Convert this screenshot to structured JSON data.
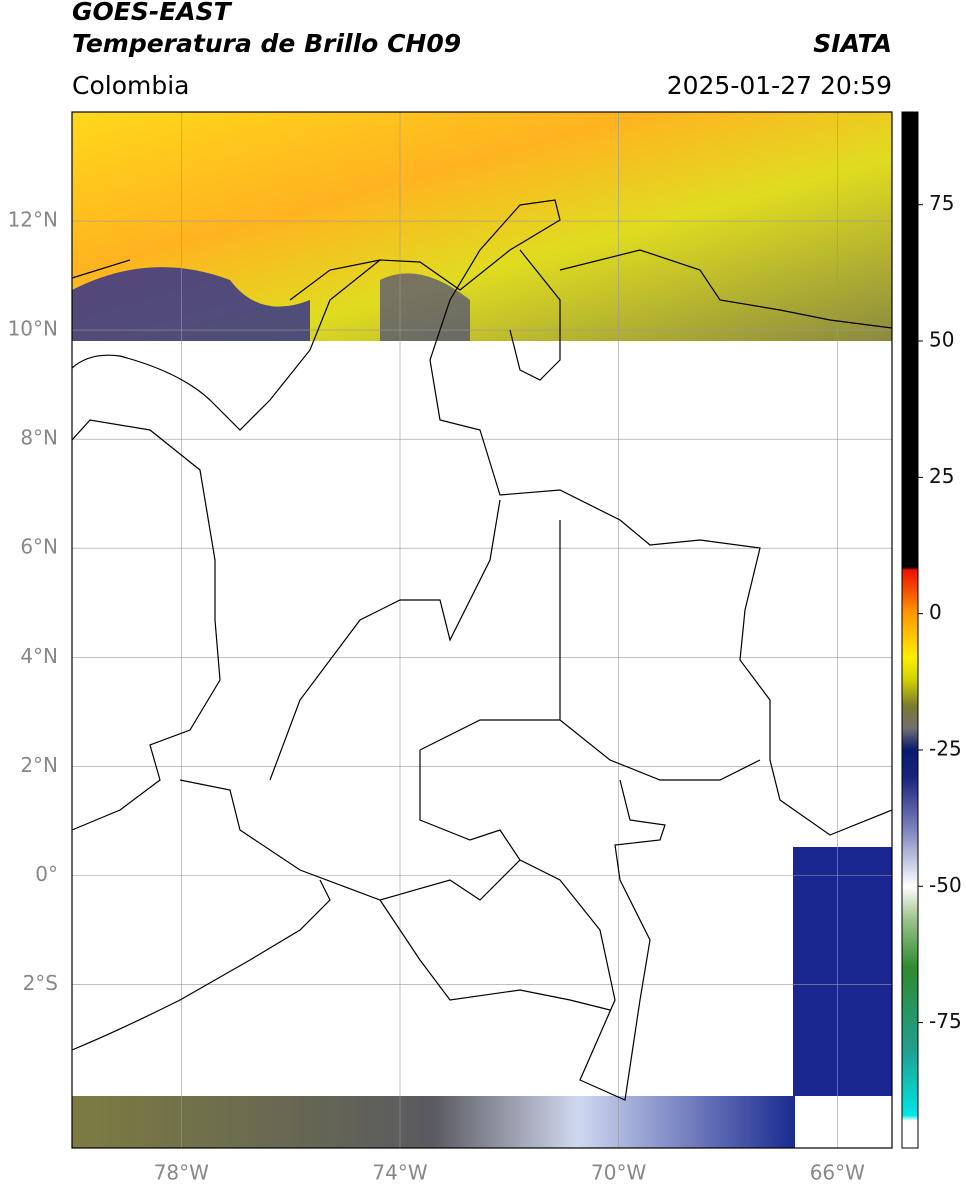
{
  "chart_data": {
    "type": "map",
    "title": "GOES-EAST",
    "subtitle": "Temperatura de Brillo CH09",
    "source": "SIATA",
    "region": "Colombia",
    "timestamp": "2025-01-27 20:59",
    "xlim": [
      -80,
      -65
    ],
    "ylim": [
      -5,
      14
    ],
    "xticks": [
      {
        "value": -78,
        "label": "78°W"
      },
      {
        "value": -74,
        "label": "74°W"
      },
      {
        "value": -70,
        "label": "70°W"
      },
      {
        "value": -66,
        "label": "66°W"
      }
    ],
    "yticks": [
      {
        "value": 12,
        "label": "12°N"
      },
      {
        "value": 10,
        "label": "10°N"
      },
      {
        "value": 8,
        "label": "8°N"
      },
      {
        "value": 6,
        "label": "6°N"
      },
      {
        "value": 4,
        "label": "4°N"
      },
      {
        "value": 2,
        "label": "2°N"
      },
      {
        "value": 0,
        "label": "0°"
      },
      {
        "value": -2,
        "label": "2°S"
      }
    ],
    "grid": true,
    "clim": [
      -98,
      92
    ],
    "cticks": [
      75,
      50,
      25,
      0,
      -25,
      -50,
      -75
    ],
    "colormap": [
      {
        "value": -98,
        "color": "#ffffff"
      },
      {
        "value": -93,
        "color": "#ffffff"
      },
      {
        "value": -92,
        "color": "#00e5e5"
      },
      {
        "value": -80,
        "color": "#20a090"
      },
      {
        "value": -65,
        "color": "#2e8b2e"
      },
      {
        "value": -56,
        "color": "#9cc48c"
      },
      {
        "value": -50,
        "color": "#ffffff"
      },
      {
        "value": -40,
        "color": "#8088c0"
      },
      {
        "value": -30,
        "color": "#1a237e"
      },
      {
        "value": -25,
        "color": "#0a1a70"
      },
      {
        "value": -21,
        "color": "#707070"
      },
      {
        "value": -17,
        "color": "#7a7a30"
      },
      {
        "value": -12,
        "color": "#d4d400"
      },
      {
        "value": -8,
        "color": "#ffee00"
      },
      {
        "value": 0,
        "color": "#ff9900"
      },
      {
        "value": 8,
        "color": "#ee1100"
      },
      {
        "value": 8.5,
        "color": "#000000"
      },
      {
        "value": 92,
        "color": "#000000"
      }
    ]
  }
}
